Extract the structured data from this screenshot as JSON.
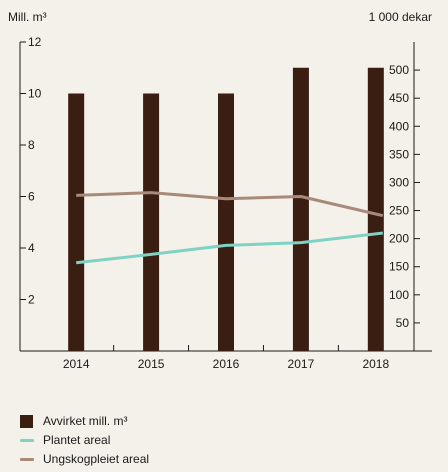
{
  "chart_data": {
    "type": "bar",
    "left_axis_unit": "Mill. m³",
    "right_axis_unit": "1 000 dekar",
    "categories": [
      "2014",
      "2015",
      "2016",
      "2017",
      "2018"
    ],
    "left_axis": {
      "range": [
        0,
        12
      ],
      "ticks": [
        "2",
        "4",
        "6",
        "8",
        "10",
        "12"
      ]
    },
    "right_axis": {
      "range": [
        0,
        550
      ],
      "ticks": [
        "50",
        "100",
        "150",
        "200",
        "250",
        "300",
        "350",
        "400",
        "450",
        "500"
      ]
    },
    "series": [
      {
        "name": "Avvirket mill. m³",
        "kind": "bar",
        "axis": "left",
        "color": "#3a1e12",
        "values": [
          10,
          10,
          10,
          11,
          11
        ]
      },
      {
        "name": "Plantet areal",
        "kind": "line",
        "axis": "right",
        "color": "#7fd3c4",
        "values": [
          157,
          172,
          188,
          193,
          210
        ]
      },
      {
        "name": "Ungskogpleiet areal",
        "kind": "line",
        "axis": "right",
        "color": "#a88a7a",
        "values": [
          277,
          282,
          271,
          275,
          241
        ]
      }
    ]
  }
}
